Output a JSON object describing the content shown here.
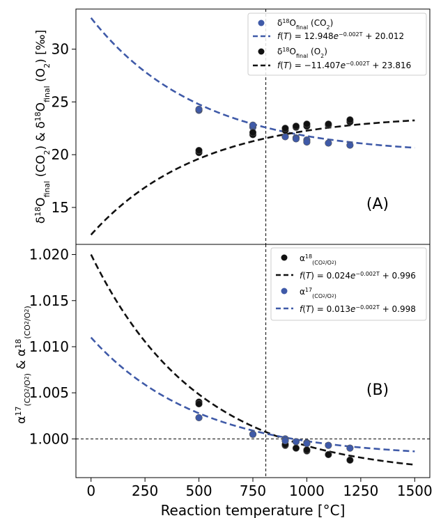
{
  "figure": {
    "xlabel": "Reaction temperature [°C]",
    "x_ticks": [
      0,
      250,
      500,
      750,
      1000,
      1250,
      1500
    ],
    "xlim": [
      -70,
      1570
    ],
    "divider_x": 810
  },
  "chart_data": [
    {
      "type": "scatter",
      "panel_label": "(A)",
      "ylabel": "δ18Ofinal (CO2) & δ18Ofinal (O2) [‰]",
      "ylim": [
        11.5,
        33.8
      ],
      "y_ticks": [
        15,
        20,
        25,
        30
      ],
      "y_tick_labels": [
        "15",
        "20",
        "25",
        "30"
      ],
      "legend_position": "top-right",
      "series": [
        {
          "name": "δ18Ofinal (CO2)",
          "kind": "points",
          "color": "#3f5aa8",
          "x": [
            500,
            500,
            750,
            750,
            900,
            950,
            950,
            1000,
            1000,
            1100,
            1200
          ],
          "y": [
            24.2,
            24.3,
            22.6,
            22.8,
            21.7,
            21.6,
            21.5,
            21.4,
            21.2,
            21.1,
            20.9
          ]
        },
        {
          "name": "f(T) = 12.948e^(−0.002T) + 20.012",
          "kind": "fit",
          "color": "#3f5aa8",
          "a": 12.948,
          "k": -0.002,
          "c": 20.012,
          "x_range": [
            0,
            1500
          ]
        },
        {
          "name": "δ18Ofinal (O2)",
          "kind": "points",
          "color": "#111111",
          "x": [
            500,
            500,
            750,
            750,
            900,
            900,
            950,
            950,
            1000,
            1000,
            1100,
            1100,
            1200,
            1200
          ],
          "y": [
            20.2,
            20.4,
            21.9,
            22.1,
            22.3,
            22.5,
            22.6,
            22.7,
            22.7,
            22.9,
            22.8,
            22.9,
            23.1,
            23.3
          ]
        },
        {
          "name": "f(T) = −11.407e^(−0.002T) + 23.816",
          "kind": "fit",
          "color": "#111111",
          "a": -11.407,
          "k": -0.002,
          "c": 23.816,
          "x_range": [
            0,
            1500
          ]
        }
      ]
    },
    {
      "type": "scatter",
      "panel_label": "(B)",
      "ylabel": "α17(CO2/O2) & α18(CO2/O2)",
      "ylim": [
        0.9958,
        1.0211
      ],
      "y_ticks": [
        1.0,
        1.005,
        1.01,
        1.015,
        1.02
      ],
      "y_tick_labels": [
        "1.000",
        "1.005",
        "1.010",
        "1.015",
        "1.020"
      ],
      "hline_y": 1.0,
      "legend_position": "top-right",
      "series": [
        {
          "name": "α18(CO2/O2)",
          "kind": "points",
          "color": "#111111",
          "x": [
            500,
            500,
            750,
            900,
            900,
            950,
            1000,
            1000,
            1100,
            1200
          ],
          "y": [
            1.004,
            1.0038,
            1.0005,
            0.9993,
            0.9994,
            0.999,
            0.9987,
            0.9988,
            0.9983,
            0.9977
          ]
        },
        {
          "name": "f(T) = 0.024e^(−0.002T) + 0.996",
          "kind": "fit",
          "color": "#111111",
          "a": 0.024,
          "k": -0.002,
          "c": 0.996,
          "x_range": [
            0,
            1500
          ]
        },
        {
          "name": "α17(CO2/O2)",
          "kind": "points",
          "color": "#3f5aa8",
          "x": [
            500,
            750,
            900,
            900,
            950,
            1000,
            1000,
            1100,
            1200
          ],
          "y": [
            1.0023,
            1.0005,
            1.0,
            0.9998,
            0.9997,
            0.9996,
            0.9995,
            0.9993,
            0.999
          ]
        },
        {
          "name": "f(T) = 0.013e^(−0.002T) + 0.998",
          "kind": "fit",
          "color": "#3f5aa8",
          "a": 0.013,
          "k": -0.002,
          "c": 0.998,
          "x_range": [
            0,
            1500
          ]
        }
      ]
    }
  ]
}
